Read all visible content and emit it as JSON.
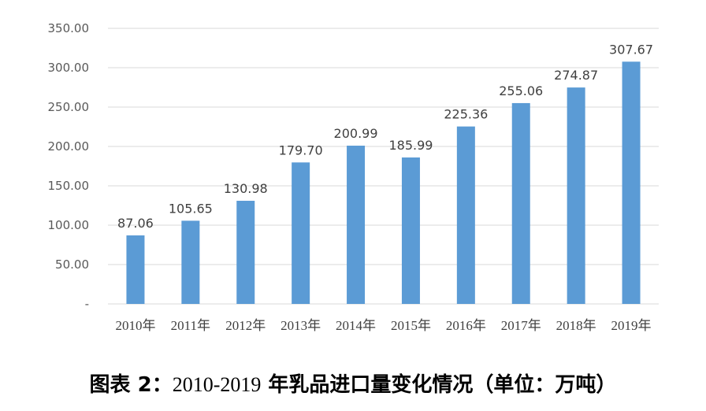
{
  "caption": {
    "prefix": "图表 2：",
    "range": "2010-2019",
    "title": " 年乳品进口量变化情况（单位：万吨）"
  },
  "chart_data": {
    "type": "bar",
    "categories": [
      "2010年",
      "2011年",
      "2012年",
      "2013年",
      "2014年",
      "2015年",
      "2016年",
      "2017年",
      "2018年",
      "2019年"
    ],
    "values": [
      87.06,
      105.65,
      130.98,
      179.7,
      200.99,
      185.99,
      225.36,
      255.06,
      274.87,
      307.67
    ],
    "value_labels": [
      "87.06",
      "105.65",
      "130.98",
      "179.70",
      "200.99",
      "185.99",
      "225.36",
      "255.06",
      "274.87",
      "307.67"
    ],
    "ylim": [
      0,
      350
    ],
    "yticks": [
      0,
      50,
      100,
      150,
      200,
      250,
      300,
      350
    ],
    "ytick_labels": [
      "-",
      "50.00",
      "100.00",
      "150.00",
      "200.00",
      "250.00",
      "300.00",
      "350.00"
    ],
    "bar_color": "#5b9bd5",
    "grid": true,
    "xlabel": "",
    "ylabel": ""
  }
}
